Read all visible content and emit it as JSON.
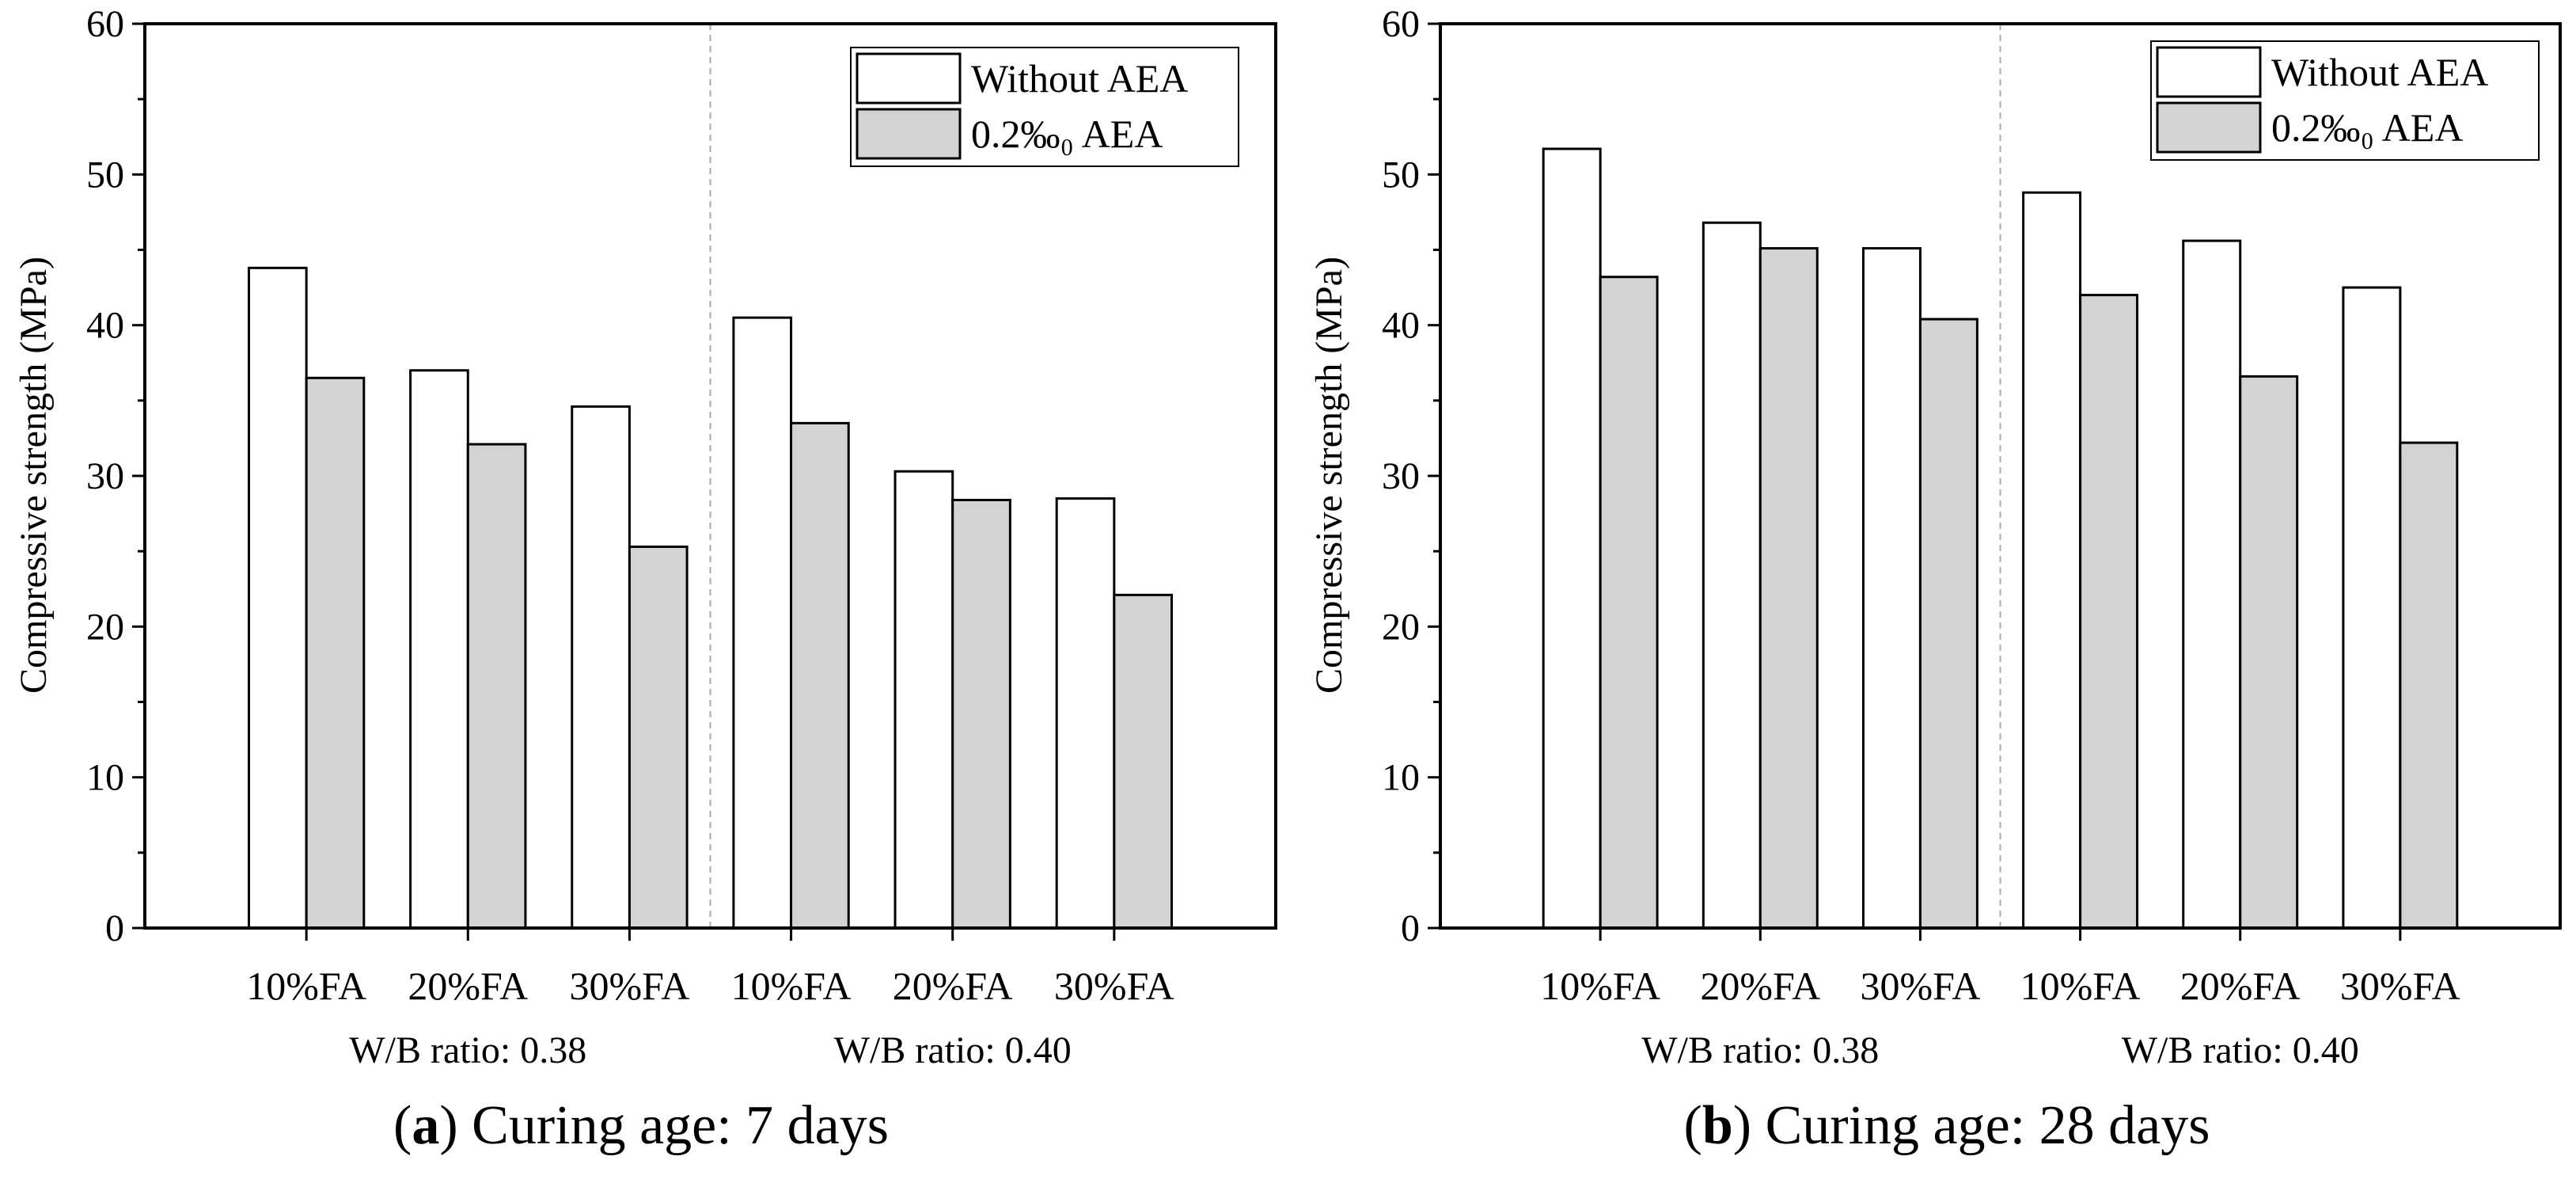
{
  "legend": {
    "without_label": "Without AEA",
    "with_label": "0.2‰₀ AEA"
  },
  "colors": {
    "without_fill": "#ffffff",
    "with_fill": "#d3d3d3",
    "stroke": "#000000",
    "divider": "#aaaaaa"
  },
  "y_axis_label": "Compressive strength (MPa)",
  "chart_data": [
    {
      "type": "bar",
      "caption_letter": "a",
      "caption_rest": ") Curing age: 7 days",
      "title": "(a) Curing age: 7 days",
      "ylabel": "Compressive strength (MPa)",
      "ylim": [
        0,
        60
      ],
      "yticks": [
        "0",
        "10",
        "20",
        "30",
        "40",
        "50",
        "60"
      ],
      "categories": [
        "10%FA",
        "20%FA",
        "30%FA",
        "10%FA",
        "20%FA",
        "30%FA"
      ],
      "groups": [
        "W/B ratio: 0.38",
        "W/B ratio: 0.40"
      ],
      "series": [
        {
          "name": "Without AEA",
          "values": [
            43.8,
            37.0,
            34.6,
            40.5,
            30.3,
            28.5
          ]
        },
        {
          "name": "0.2‰₀ AEA",
          "values": [
            36.5,
            32.1,
            25.3,
            33.5,
            28.4,
            22.1
          ]
        }
      ]
    },
    {
      "type": "bar",
      "caption_letter": "b",
      "caption_rest": ") Curing age: 28 days",
      "title": "(b) Curing age: 28 days",
      "ylabel": "Compressive strength (MPa)",
      "ylim": [
        0,
        60
      ],
      "yticks": [
        "0",
        "10",
        "20",
        "30",
        "40",
        "50",
        "60"
      ],
      "categories": [
        "10%FA",
        "20%FA",
        "30%FA",
        "10%FA",
        "20%FA",
        "30%FA"
      ],
      "groups": [
        "W/B ratio: 0.38",
        "W/B ratio: 0.40"
      ],
      "series": [
        {
          "name": "Without AEA",
          "values": [
            51.7,
            46.8,
            45.1,
            48.8,
            45.6,
            42.5
          ]
        },
        {
          "name": "0.2‰₀ AEA",
          "values": [
            43.2,
            45.1,
            40.4,
            42.0,
            36.6,
            32.2
          ]
        }
      ]
    }
  ]
}
